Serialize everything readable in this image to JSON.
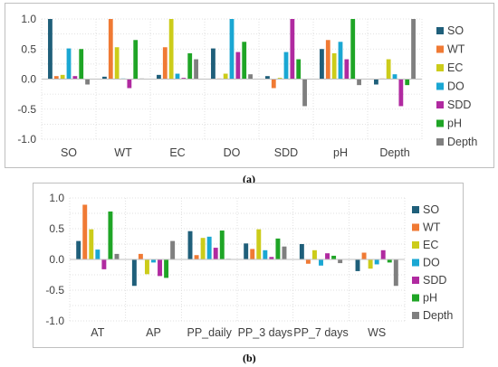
{
  "series_colors": {
    "SO": "#1f5f7a",
    "WT": "#f07a34",
    "EC": "#cccc1a",
    "DO": "#1aa7d3",
    "SDD": "#b02aa0",
    "pH": "#1fa526",
    "Depth": "#7f7f7f"
  },
  "chart_data": [
    {
      "type": "bar",
      "caption": "(a)",
      "categories": [
        "SO",
        "WT",
        "EC",
        "DO",
        "SDD",
        "pH",
        "Depth"
      ],
      "ylim": [
        -1.0,
        1.0
      ],
      "yticks": [
        "1.0",
        "0.5",
        "0.0",
        "-0.5",
        "-1.0"
      ],
      "grid": true,
      "legend_position": "right",
      "series": [
        {
          "name": "SO",
          "values": [
            1.0,
            0.04,
            0.07,
            0.51,
            0.05,
            0.5,
            -0.09
          ]
        },
        {
          "name": "WT",
          "values": [
            0.05,
            1.0,
            0.53,
            0.01,
            -0.15,
            0.65,
            0.01
          ]
        },
        {
          "name": "EC",
          "values": [
            0.07,
            0.53,
            1.0,
            0.09,
            0.02,
            0.43,
            0.33
          ]
        },
        {
          "name": "DO",
          "values": [
            0.51,
            0.01,
            0.09,
            1.0,
            0.45,
            0.62,
            0.08
          ]
        },
        {
          "name": "SDD",
          "values": [
            0.05,
            -0.15,
            0.02,
            0.45,
            1.0,
            0.33,
            -0.45
          ]
        },
        {
          "name": "pH",
          "values": [
            0.5,
            0.65,
            0.43,
            0.62,
            0.33,
            1.0,
            -0.1
          ]
        },
        {
          "name": "Depth",
          "values": [
            -0.09,
            0.01,
            0.33,
            0.08,
            -0.45,
            -0.1,
            1.0
          ]
        }
      ]
    },
    {
      "type": "bar",
      "caption": "(b)",
      "categories": [
        "AT",
        "AP",
        "PP_daily",
        "PP_3 days",
        "PP_7 days",
        "WS"
      ],
      "ylim": [
        -1.0,
        1.0
      ],
      "yticks": [
        "1.0",
        "0.5",
        "0.0",
        "-0.5",
        "-1.0"
      ],
      "grid": true,
      "legend_position": "right",
      "series": [
        {
          "name": "SO",
          "values": [
            0.3,
            -0.43,
            0.46,
            0.26,
            0.25,
            -0.19
          ]
        },
        {
          "name": "WT",
          "values": [
            0.89,
            0.09,
            0.07,
            0.17,
            -0.07,
            0.11
          ]
        },
        {
          "name": "EC",
          "values": [
            0.49,
            -0.24,
            0.35,
            0.49,
            0.15,
            -0.15
          ]
        },
        {
          "name": "DO",
          "values": [
            0.16,
            -0.05,
            0.37,
            0.15,
            -0.1,
            -0.08
          ]
        },
        {
          "name": "SDD",
          "values": [
            -0.16,
            -0.27,
            0.19,
            0.04,
            0.1,
            0.15
          ]
        },
        {
          "name": "pH",
          "values": [
            0.78,
            -0.3,
            0.47,
            0.34,
            0.06,
            -0.05
          ]
        },
        {
          "name": "Depth",
          "values": [
            0.09,
            0.3,
            0.01,
            0.21,
            -0.06,
            -0.43
          ]
        }
      ]
    }
  ]
}
